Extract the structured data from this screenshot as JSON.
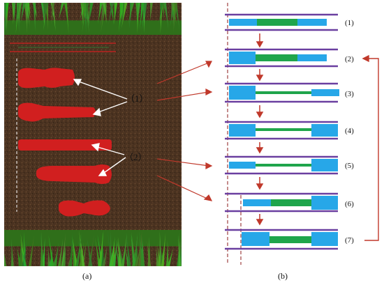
{
  "panel_a": {
    "caption": "(a)",
    "callout_1": "（1）",
    "callout_2": "（2）"
  },
  "panel_b": {
    "caption": "(b)",
    "stages": [
      {
        "label": "(1)"
      },
      {
        "label": "(2)"
      },
      {
        "label": "(3)"
      },
      {
        "label": "(4)"
      },
      {
        "label": "(5)"
      },
      {
        "label": "(6)"
      },
      {
        "label": "(7)"
      }
    ]
  },
  "colors": {
    "soil": "#4a3220",
    "grass": "#3f8f24",
    "hole": "#d11f1f",
    "tube_line": "#6a3fa0",
    "light_blue": "#27a7e8",
    "green": "#1fa54b",
    "arrow_red": "#c0392b",
    "dashed": "#8b1a1a"
  }
}
